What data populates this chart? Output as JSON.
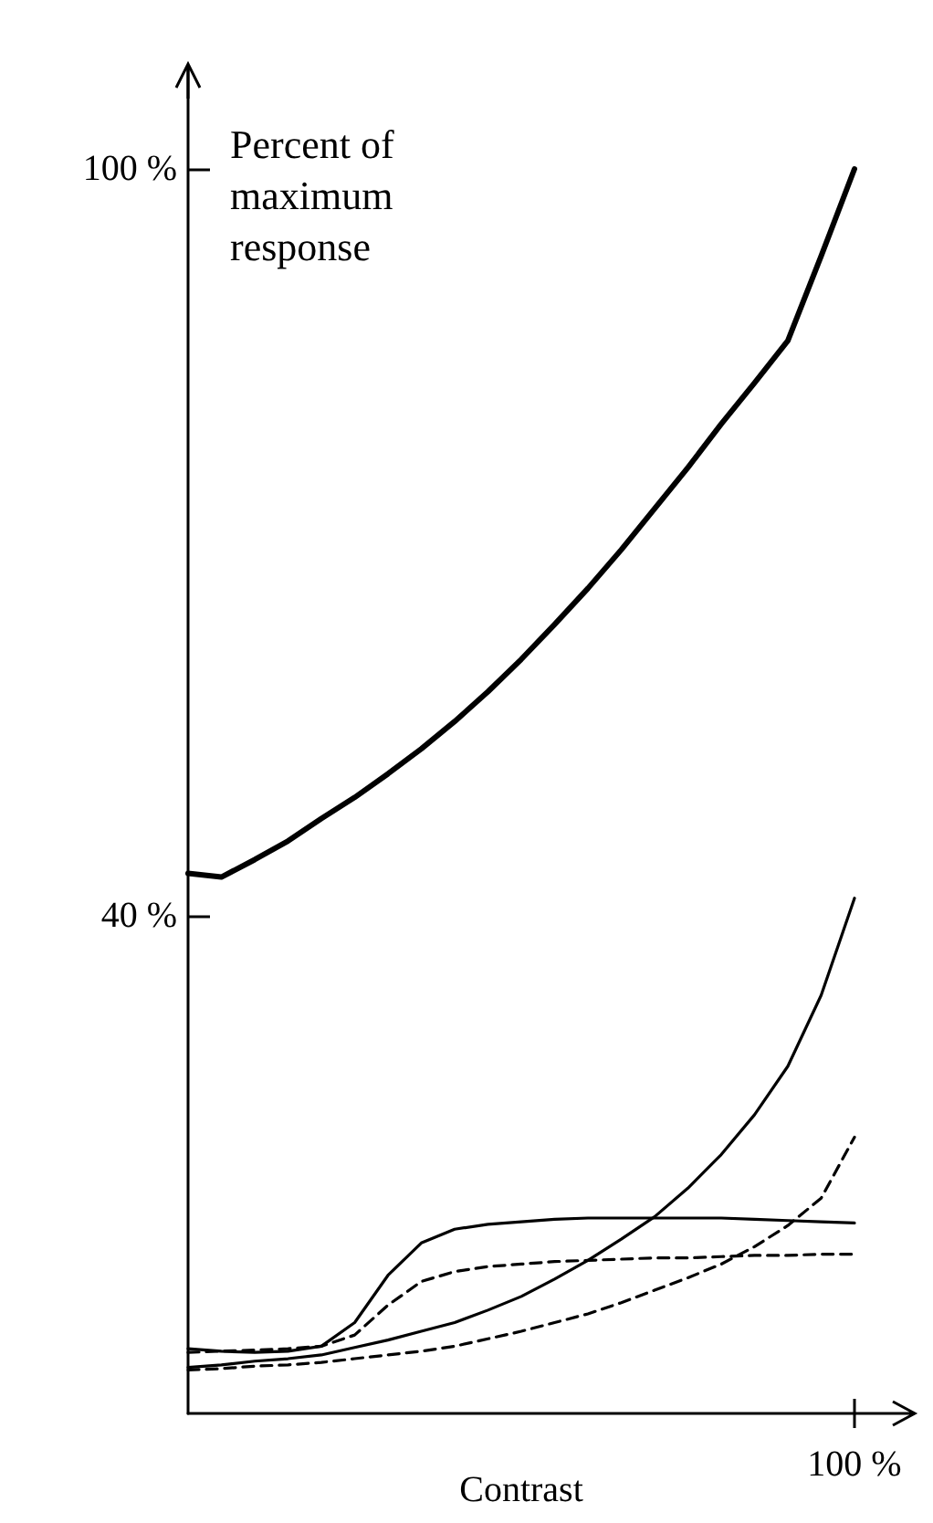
{
  "chart_data": {
    "type": "line",
    "xlabel": "Contrast",
    "ylabel": "Percent of maximum response",
    "ylim": [
      0,
      108
    ],
    "yticks": [
      {
        "value": 40,
        "label": "40 %"
      },
      {
        "value": 100,
        "label": "100 %"
      }
    ],
    "annotations": [
      "100 %"
    ],
    "marker": "none",
    "categories": [
      null,
      null,
      null,
      null,
      null,
      null,
      null,
      null,
      null,
      null,
      null,
      null,
      null,
      null,
      null,
      null,
      null,
      null,
      null,
      null,
      null
    ],
    "series": [
      {
        "color": "#000000",
        "line_style": "solid",
        "values": [
          43.4,
          43.1,
          44.5,
          46,
          47.8,
          49.5,
          51.4,
          53.4,
          55.6,
          58,
          60.6,
          63.4,
          66.3,
          69.4,
          72.7,
          76,
          79.5,
          82.8,
          86.2,
          93,
          100
        ]
      },
      {
        "color": "#000000",
        "line_style": "solid",
        "values": [
          5.2,
          5.0,
          4.9,
          5.0,
          5.4,
          7.3,
          11.1,
          13.7,
          14.8,
          15.2,
          15.4,
          15.6,
          15.7,
          15.7,
          15.7,
          15.7,
          15.7,
          15.6,
          15.5,
          15.4,
          15.3
        ]
      },
      {
        "color": "#000000",
        "line_style": "solid",
        "values": [
          3.7,
          3.9,
          4.2,
          4.4,
          4.7,
          5.3,
          5.9,
          6.6,
          7.3,
          8.3,
          9.4,
          10.8,
          12.3,
          14,
          15.8,
          18.1,
          20.8,
          24,
          27.9,
          33.6,
          41.4
        ]
      },
      {
        "color": "#000000",
        "line_style": "dashed",
        "values": [
          4.9,
          5.0,
          5.1,
          5.2,
          5.4,
          6.3,
          8.7,
          10.6,
          11.4,
          11.8,
          12.0,
          12.2,
          12.3,
          12.4,
          12.5,
          12.5,
          12.6,
          12.7,
          12.7,
          12.8,
          12.8
        ]
      },
      {
        "color": "#000000",
        "line_style": "dashed",
        "values": [
          3.5,
          3.6,
          3.8,
          3.9,
          4.1,
          4.4,
          4.7,
          5.0,
          5.4,
          6.0,
          6.6,
          7.3,
          8.0,
          8.9,
          9.9,
          10.9,
          12.0,
          13.4,
          15.1,
          17.3,
          22.2
        ]
      }
    ]
  }
}
